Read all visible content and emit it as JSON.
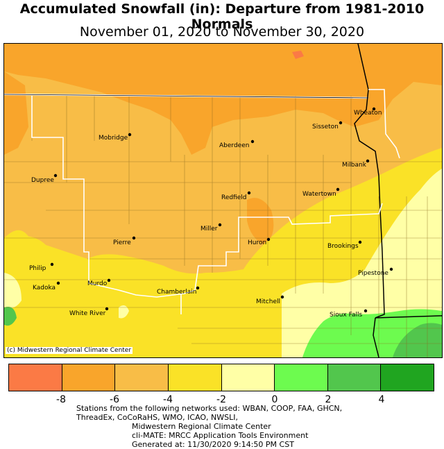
{
  "title": "Accumulated Snowfall (in): Departure from 1981-2010 Normals",
  "subtitle": "November 01, 2020 to November 30, 2020",
  "credit": "(c) Midwestern Regional Climate Center",
  "cities": [
    {
      "name": "Wheaton"
    },
    {
      "name": "Sisseton"
    },
    {
      "name": "Mobridge"
    },
    {
      "name": "Aberdeen"
    },
    {
      "name": "Milbank"
    },
    {
      "name": "Dupree"
    },
    {
      "name": "Redfield"
    },
    {
      "name": "Watertown"
    },
    {
      "name": "Miller"
    },
    {
      "name": "Pierre"
    },
    {
      "name": "Huron"
    },
    {
      "name": "Brookings"
    },
    {
      "name": "Philip"
    },
    {
      "name": "Pipestone"
    },
    {
      "name": "Murdo"
    },
    {
      "name": "Kadoka"
    },
    {
      "name": "Chamberlain"
    },
    {
      "name": "Mitchell"
    },
    {
      "name": "White River"
    },
    {
      "name": "Sioux Falls"
    }
  ],
  "legend": {
    "colors": [
      "#fb7a45",
      "#f9a52b",
      "#f8bd47",
      "#fae227",
      "#ffffa6",
      "#6dfb4f",
      "#52c64d",
      "#20a520"
    ],
    "ticks": [
      "-8",
      "-6",
      "-4",
      "-2",
      "0",
      "2",
      "4"
    ]
  },
  "footer": {
    "line1": "Stations from the following networks used: WBAN, COOP, FAA, GHCN,",
    "line2": "ThreadEx, CoCoRaHS, WMO, ICAO, NWSLI,",
    "line3": "Midwestern Regional Climate Center",
    "line4": "cli-MATE: MRCC Application Tools Environment",
    "line5": "Generated at: 11/30/2020 9:14:50 PM CST"
  }
}
